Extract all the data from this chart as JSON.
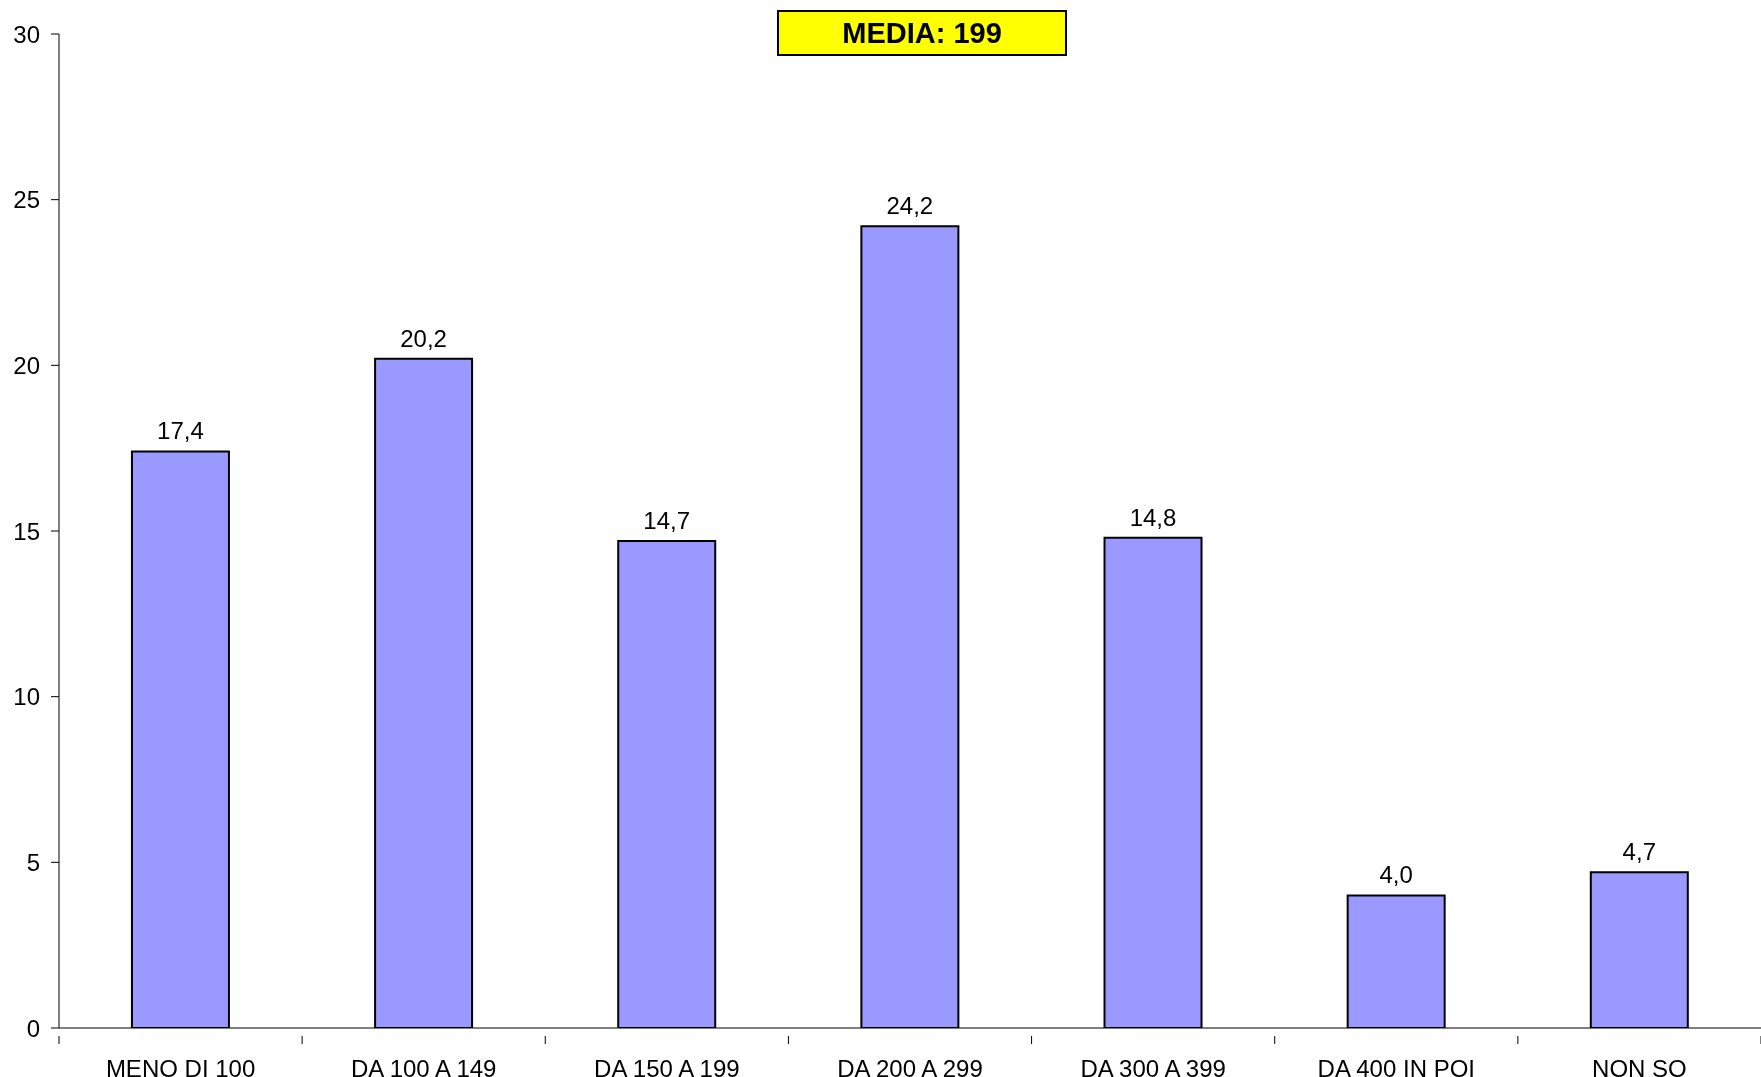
{
  "chart_data": {
    "type": "bar",
    "title": "MEDIA: 199",
    "categories": [
      "MENO DI 100",
      "DA 100 A 149",
      "DA 150 A 199",
      "DA 200 A 299",
      "DA 300 A 399",
      "DA 400 IN POI",
      "NON SO"
    ],
    "values": [
      17.4,
      20.2,
      14.7,
      24.2,
      14.8,
      4.0,
      4.7
    ],
    "color": "#9999ff",
    "value_labels": [
      "17,4",
      "20,2",
      "14,7",
      "24,2",
      "14,8",
      "4,0",
      "4,7"
    ],
    "ylim": [
      0,
      30
    ],
    "yticks": [
      0,
      5,
      10,
      15,
      20,
      25,
      30
    ]
  }
}
